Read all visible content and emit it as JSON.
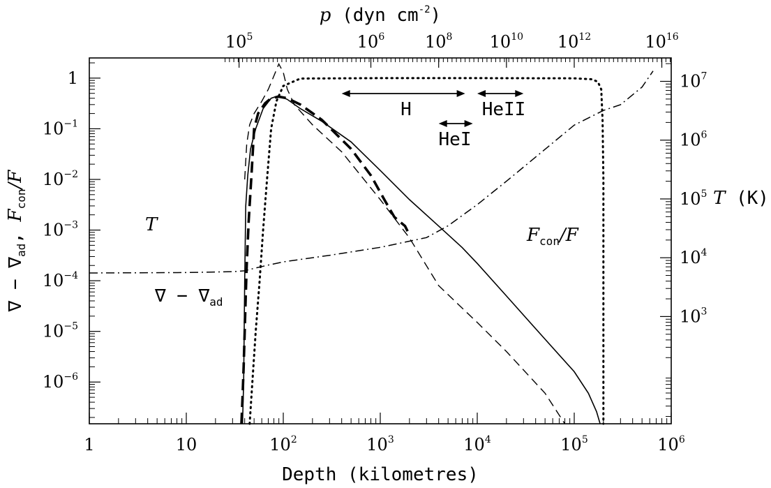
{
  "chart_data": {
    "type": "line",
    "xlabel": "Depth (kilometres)",
    "x_scale": "log",
    "xlim": [
      1,
      1000000
    ],
    "x_ticks": [
      {
        "value": 1,
        "label": "1"
      },
      {
        "value": 10,
        "label": "10"
      },
      {
        "value": 100,
        "base": "10",
        "exp": "2"
      },
      {
        "value": 1000,
        "base": "10",
        "exp": "3"
      },
      {
        "value": 10000,
        "base": "10",
        "exp": "4"
      },
      {
        "value": 100000,
        "base": "10",
        "exp": "5"
      },
      {
        "value": 1000000,
        "base": "10",
        "exp": "6"
      }
    ],
    "top_axis": {
      "label_var": "p",
      "label_units": "(dyn cm",
      "label_exp": "-2",
      "label_close": ")",
      "ticks": [
        {
          "depth": 35,
          "base": "10",
          "exp": "5"
        },
        {
          "depth": 800,
          "base": "10",
          "exp": "6"
        },
        {
          "depth": 4000,
          "base": "10",
          "exp": "8"
        },
        {
          "depth": 20000,
          "base": "10",
          "exp": "10"
        },
        {
          "depth": 100000,
          "base": "10",
          "exp": "12"
        },
        {
          "depth": 800000,
          "base": "10",
          "exp": "16"
        }
      ]
    },
    "left_axis": {
      "label_a": "F",
      "label_a_sub": "con",
      "label_a_rest": "/F",
      "label_b": "∇ − ∇",
      "label_b_sub": "ad",
      "label_b_tail": ",",
      "scale": "log",
      "ylim": [
        1.5e-07,
        2.5
      ],
      "ticks": [
        {
          "value": 1,
          "label": "1"
        },
        {
          "value": 0.1,
          "base": "10",
          "exp": "−1"
        },
        {
          "value": 0.01,
          "base": "10",
          "exp": "−2"
        },
        {
          "value": 0.001,
          "base": "10",
          "exp": "−3"
        },
        {
          "value": 0.0001,
          "base": "10",
          "exp": "−4"
        },
        {
          "value": 1e-05,
          "base": "10",
          "exp": "−5"
        },
        {
          "value": 1e-06,
          "base": "10",
          "exp": "−6"
        }
      ]
    },
    "right_axis": {
      "label_var": "T",
      "label_units": "(K)",
      "scale": "log",
      "ylim": [
        15,
        25000000.0
      ],
      "ticks": [
        {
          "value": 10000000,
          "base": "10",
          "exp": "7"
        },
        {
          "value": 1000000,
          "base": "10",
          "exp": "6"
        },
        {
          "value": 100000,
          "base": "10",
          "exp": "5"
        },
        {
          "value": 10000,
          "base": "10",
          "exp": "4"
        },
        {
          "value": 1000,
          "base": "10",
          "exp": "3"
        }
      ]
    },
    "annotations": {
      "T_label": "T",
      "nabla_label": "∇ − ∇",
      "nabla_sub": "ad",
      "fcon_label_a": "F",
      "fcon_label_sub": "con",
      "fcon_label_b": "/F",
      "H": "H",
      "HeI": "HeI",
      "HeII": "HeII"
    },
    "ionization_zones": [
      {
        "name": "H",
        "from": 400,
        "to": 7500
      },
      {
        "name": "HeI",
        "from": 4000,
        "to": 9000
      },
      {
        "name": "HeII",
        "from": 10000,
        "to": 30000
      }
    ],
    "series": [
      {
        "style": "solid-thin",
        "axis": "left",
        "x": [
          38,
          39,
          40,
          41,
          43,
          46,
          52,
          62,
          75,
          90,
          110,
          150,
          250,
          500,
          1000,
          2000,
          4000,
          7000,
          10000,
          20000,
          50000,
          100000,
          140000,
          170000,
          185000
        ],
        "y": [
          1.5e-07,
          1e-06,
          0.0001,
          0.003,
          0.012,
          0.04,
          0.1,
          0.25,
          0.4,
          0.45,
          0.38,
          0.25,
          0.14,
          0.055,
          0.015,
          0.004,
          0.0012,
          0.00045,
          0.00022,
          5e-05,
          7e-06,
          1.6e-06,
          6e-07,
          2.6e-07,
          1.5e-07
        ]
      },
      {
        "style": "dashed-thick",
        "axis": "left",
        "x": [
          37,
          38,
          39,
          40,
          41,
          42,
          44,
          47,
          50,
          55,
          65,
          75,
          90,
          110,
          150,
          250,
          500,
          800,
          1100,
          1400,
          1800,
          2000
        ],
        "y": [
          1.5e-07,
          5e-07,
          2e-06,
          1e-05,
          5e-05,
          0.0002,
          0.0015,
          0.012,
          0.1,
          0.2,
          0.32,
          0.4,
          0.43,
          0.4,
          0.3,
          0.15,
          0.04,
          0.012,
          0.004,
          0.0018,
          0.0012,
          0.0008
        ]
      },
      {
        "style": "dashed-thin",
        "axis": "left",
        "x": [
          40,
          42,
          45,
          50,
          60,
          70,
          80,
          90,
          100,
          110,
          130,
          200,
          400,
          1000,
          2000,
          4000,
          10000,
          20000,
          50000,
          80000
        ],
        "y": [
          0.01,
          0.05,
          0.12,
          0.2,
          0.35,
          0.6,
          1.1,
          1.9,
          1.3,
          0.6,
          0.3,
          0.12,
          0.035,
          0.004,
          0.0007,
          8e-05,
          1.5e-05,
          4e-06,
          6e-07,
          1.5e-07
        ]
      },
      {
        "style": "dotted",
        "axis": "left",
        "x": [
          45,
          48,
          52,
          57,
          62,
          68,
          75,
          85,
          100,
          150,
          1000,
          10000,
          100000,
          150000,
          175000,
          190000,
          196000,
          200000,
          200000
        ],
        "y": [
          1.5e-07,
          1e-06,
          1e-05,
          0.0001,
          0.001,
          0.01,
          0.1,
          0.35,
          0.7,
          0.98,
          1.0,
          1.0,
          0.99,
          0.95,
          0.85,
          0.6,
          0.15,
          0.01,
          1.5e-07
        ]
      },
      {
        "style": "dashdot",
        "axis": "right",
        "x": [
          1,
          10,
          30,
          40,
          50,
          70,
          100,
          300,
          1000,
          3000,
          5000,
          10000,
          20000,
          50000,
          100000,
          200000,
          300000,
          500000,
          650000
        ],
        "y": [
          5500,
          5600,
          5800,
          6000,
          6600,
          7500,
          8500,
          11000,
          15000,
          22000,
          35000,
          80000,
          200000,
          700000,
          1800000,
          3200000,
          4000000,
          8000000,
          15000000
        ]
      }
    ]
  }
}
